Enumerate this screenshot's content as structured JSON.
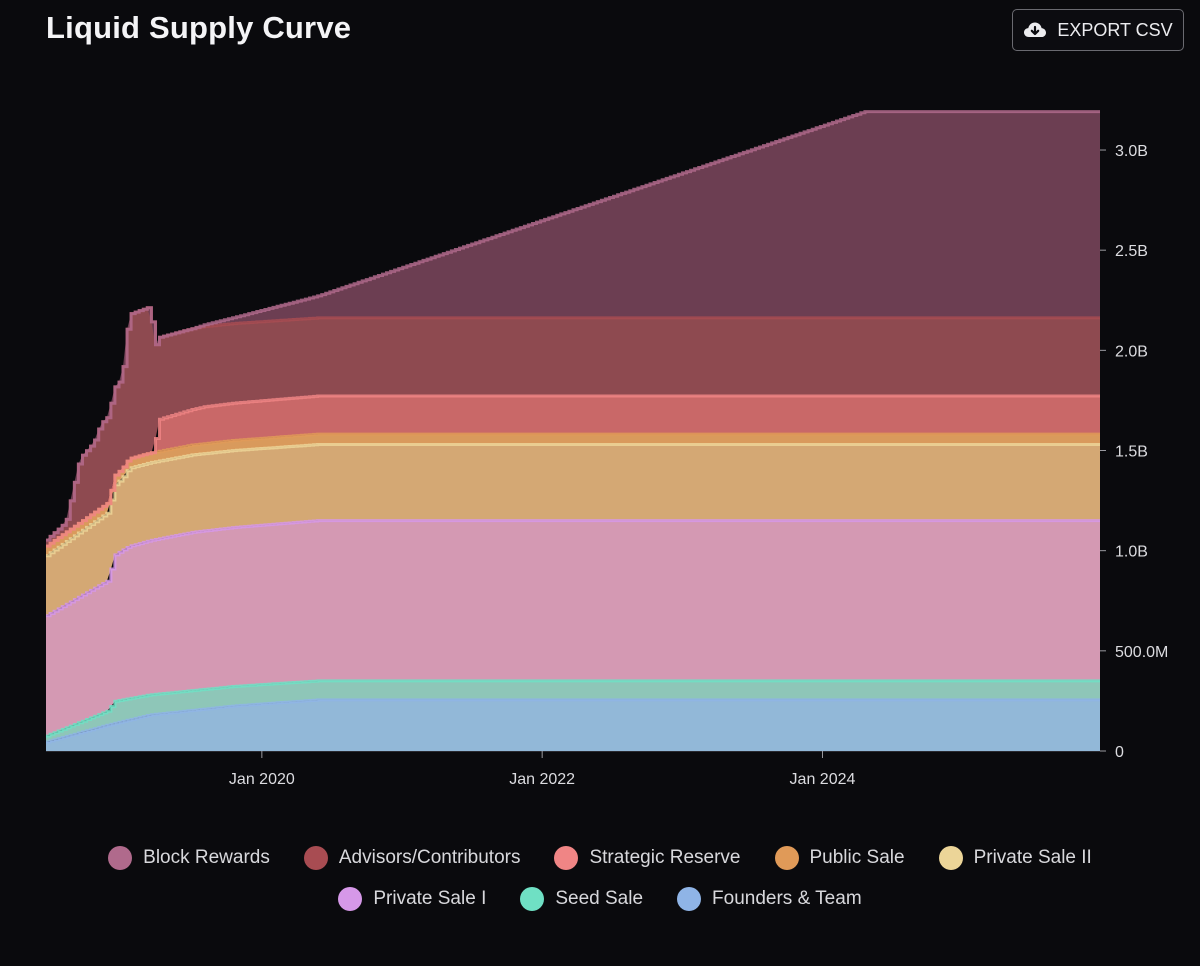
{
  "header": {
    "title": "Liquid Supply Curve",
    "export_label": "EXPORT CSV",
    "export_icon": "cloud-download-icon"
  },
  "chart_data": {
    "type": "area",
    "stacked": true,
    "title": "Liquid Supply Curve",
    "x_ticks": [
      {
        "t": 2020.0,
        "label": "Jan 2020"
      },
      {
        "t": 2022.0,
        "label": "Jan 2022"
      },
      {
        "t": 2024.0,
        "label": "Jan 2024"
      }
    ],
    "y_ticks": [
      {
        "v": 0,
        "label": "0"
      },
      {
        "v": 500,
        "label": "500.0M"
      },
      {
        "v": 1000,
        "label": "1.0B"
      },
      {
        "v": 1500,
        "label": "1.5B"
      },
      {
        "v": 2000,
        "label": "2.0B"
      },
      {
        "v": 2500,
        "label": "2.5B"
      },
      {
        "v": 3000,
        "label": "3.0B"
      }
    ],
    "xlim": [
      2018.46,
      2025.98
    ],
    "ylim": [
      0,
      3050
    ],
    "y_unit": "millions of tokens",
    "series": [
      {
        "name": "Founders & Team",
        "color": "#92b8d8",
        "line": "#8fb4e6",
        "points": [
          [
            2018.46,
            45
          ],
          [
            2018.9,
            130
          ],
          [
            2019.2,
            180
          ],
          [
            2019.8,
            225
          ],
          [
            2020.4,
            255
          ],
          [
            2025.98,
            255
          ]
        ]
      },
      {
        "name": "Seed Sale",
        "color": "#8ec6b8",
        "line": "#6fe0c4",
        "points": [
          [
            2018.46,
            30
          ],
          [
            2018.9,
            70
          ],
          [
            2018.95,
            110
          ],
          [
            2019.2,
            100
          ],
          [
            2020.4,
            95
          ],
          [
            2025.98,
            95
          ]
        ]
      },
      {
        "name": "Private Sale I",
        "color": "#d499b3",
        "line": "#d698e8",
        "points": [
          [
            2018.46,
            600
          ],
          [
            2018.9,
            650
          ],
          [
            2018.95,
            730
          ],
          [
            2019.05,
            760
          ],
          [
            2019.5,
            790
          ],
          [
            2020.4,
            800
          ],
          [
            2025.98,
            800
          ]
        ]
      },
      {
        "name": "Private Sale II",
        "color": "#d4a874",
        "line": "#ecd598",
        "points": [
          [
            2018.46,
            300
          ],
          [
            2018.9,
            340
          ],
          [
            2019.0,
            360
          ],
          [
            2019.05,
            390
          ],
          [
            2020.4,
            380
          ],
          [
            2025.98,
            380
          ]
        ]
      },
      {
        "name": "Public Sale",
        "color": "#d99a5c",
        "line": "#e09a58",
        "points": [
          [
            2018.46,
            48
          ],
          [
            2018.9,
            48
          ],
          [
            2019.05,
            48
          ],
          [
            2020.4,
            52
          ],
          [
            2025.98,
            52
          ]
        ]
      },
      {
        "name": "Strategic Reserve",
        "color": "#c96868",
        "line": "#f08585",
        "points": [
          [
            2018.46,
            0
          ],
          [
            2019.22,
            0
          ],
          [
            2019.27,
            160
          ],
          [
            2019.6,
            185
          ],
          [
            2020.4,
            190
          ],
          [
            2025.98,
            190
          ]
        ]
      },
      {
        "name": "Advisors/Contributors",
        "color": "#8e4a50",
        "line": "#a84c52",
        "points": [
          [
            2018.46,
            30
          ],
          [
            2018.6,
            50
          ],
          [
            2018.7,
            320
          ],
          [
            2018.8,
            350
          ],
          [
            2018.85,
            420
          ],
          [
            2019.0,
            450
          ],
          [
            2019.05,
            720
          ],
          [
            2019.2,
            730
          ],
          [
            2019.25,
            410
          ],
          [
            2019.6,
            400
          ],
          [
            2020.4,
            390
          ],
          [
            2025.98,
            390
          ]
        ]
      },
      {
        "name": "Block Rewards",
        "color": "#6c3e52",
        "line": "#b06a8c",
        "points": [
          [
            2018.46,
            0
          ],
          [
            2019.5,
            0
          ],
          [
            2019.8,
            30
          ],
          [
            2020.4,
            110
          ],
          [
            2024.3,
            1030
          ],
          [
            2025.98,
            1030
          ]
        ]
      }
    ],
    "legend": [
      [
        "Block Rewards",
        "Advisors/Contributors",
        "Strategic Reserve",
        "Public Sale",
        "Private Sale II"
      ],
      [
        "Private Sale I",
        "Seed Sale",
        "Founders & Team"
      ]
    ]
  }
}
